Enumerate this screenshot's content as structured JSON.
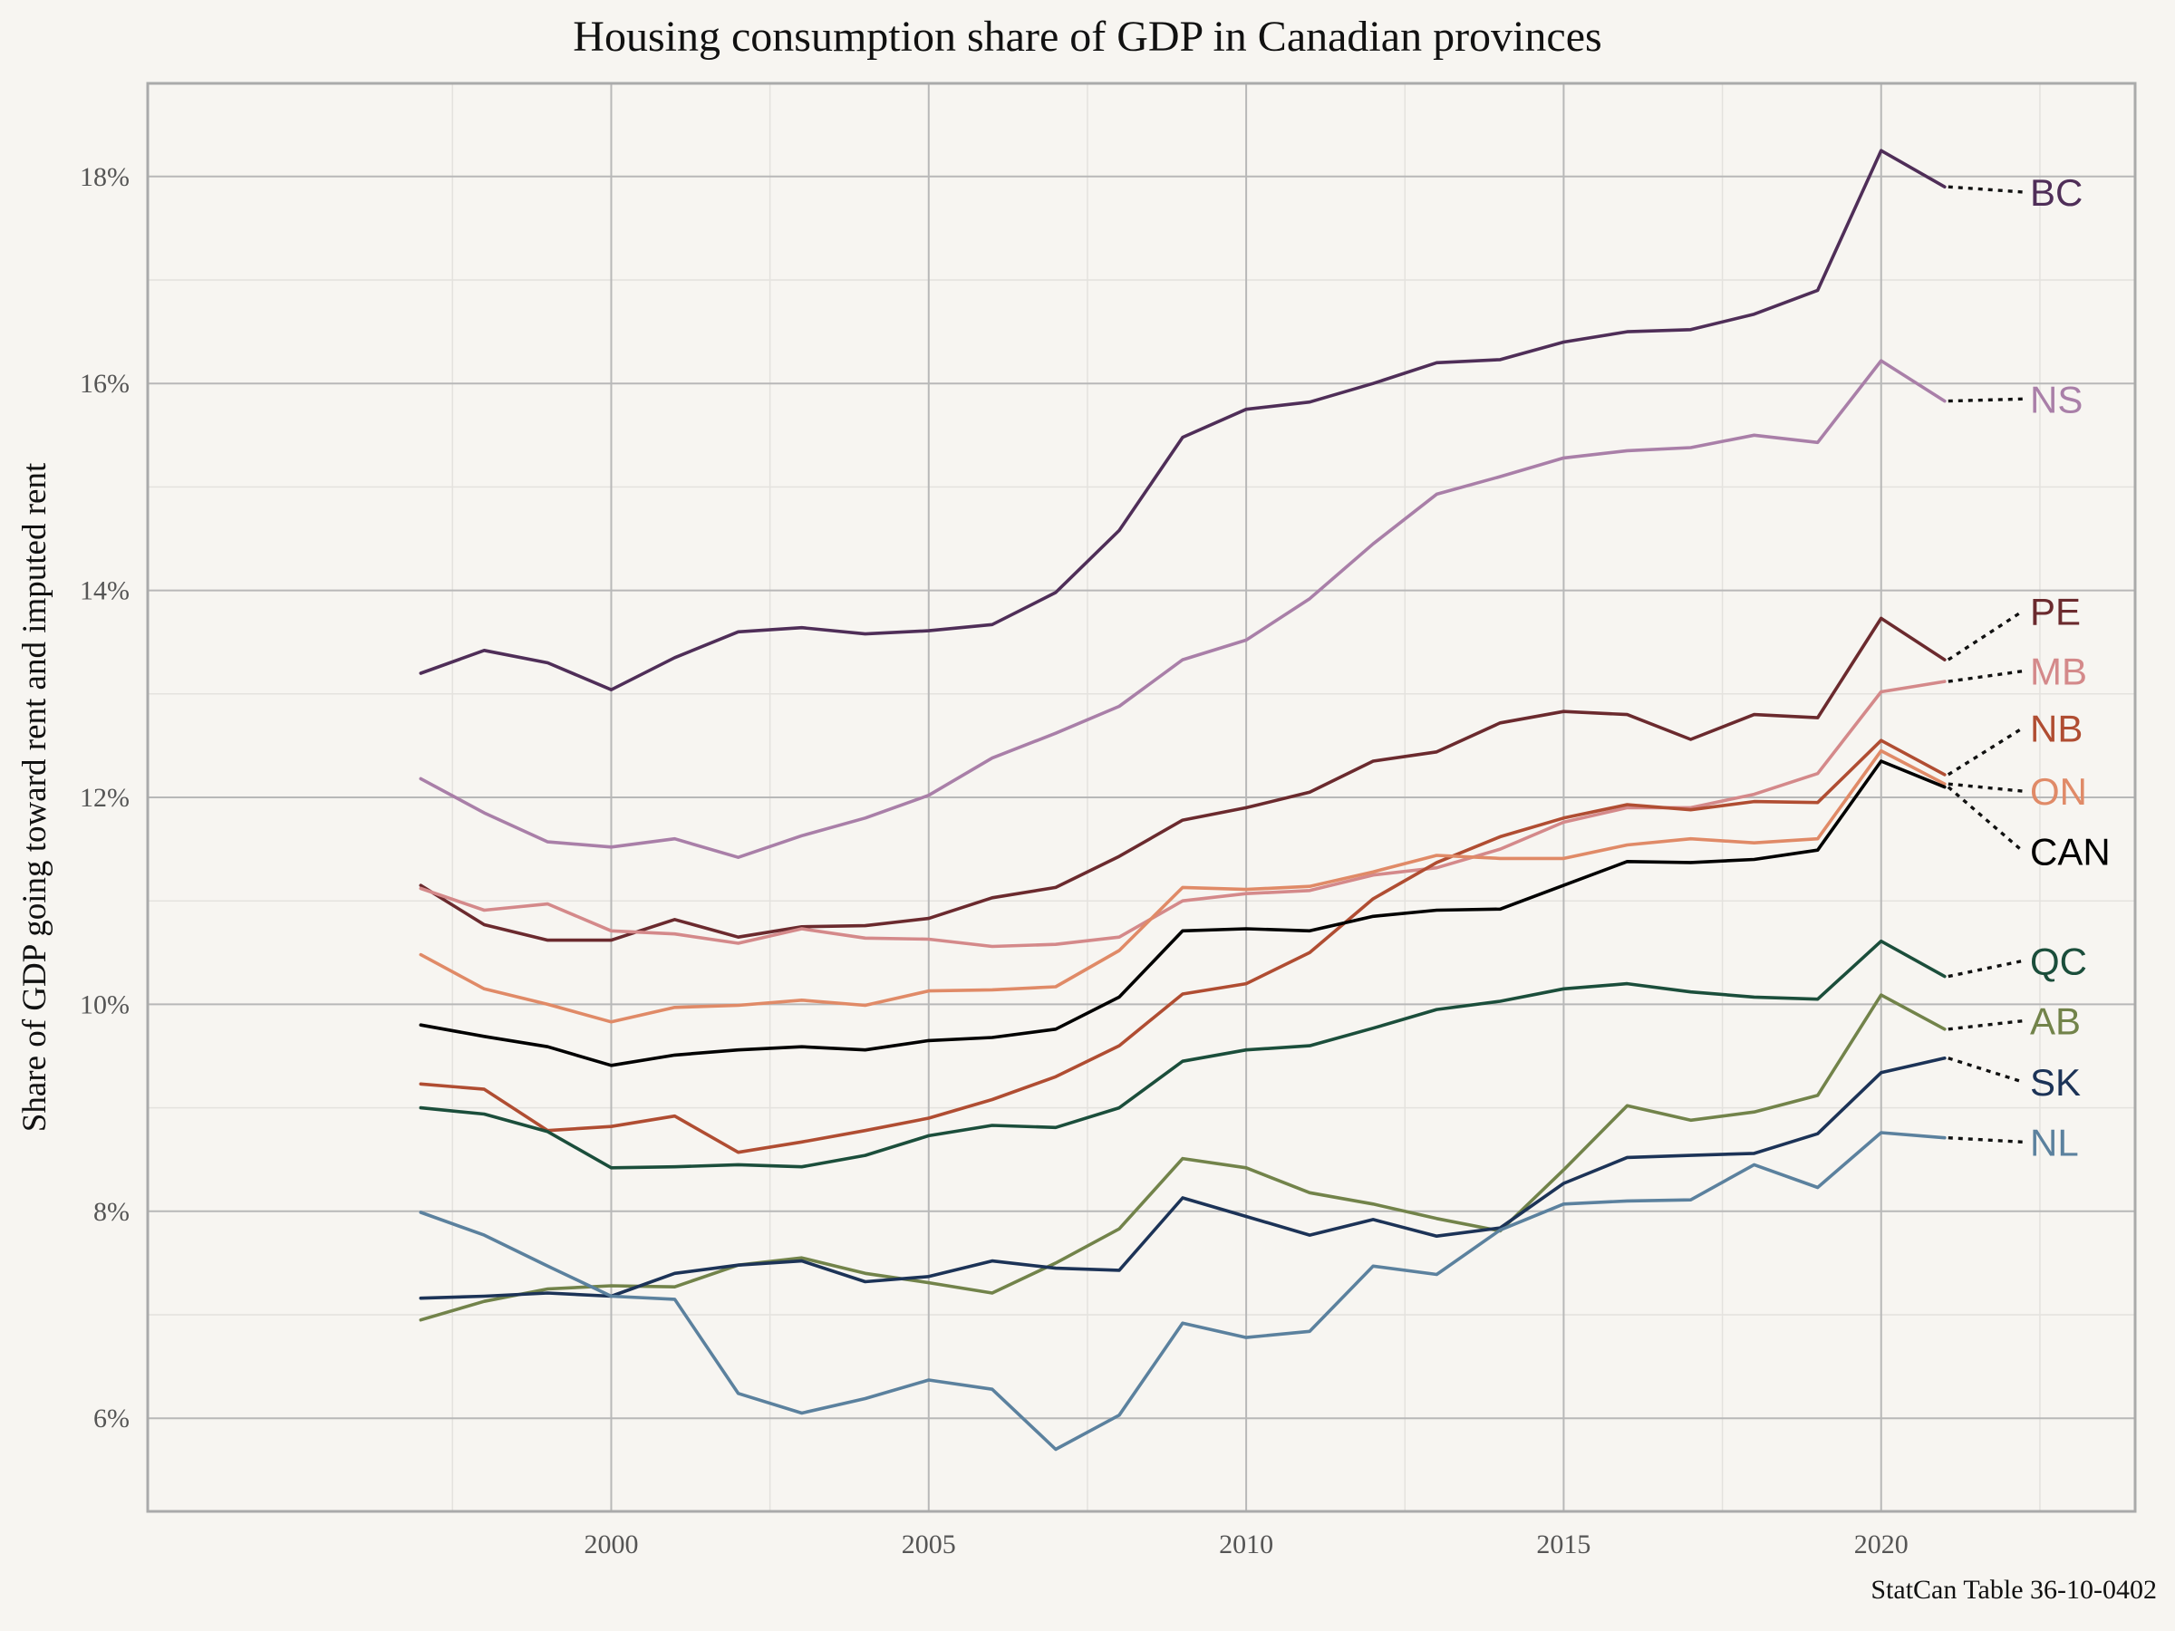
{
  "chart_data": {
    "type": "line",
    "title": "Housing consumption share of GDP in Canadian provinces",
    "ylabel": "Share of GDP going toward rent and imputed rent",
    "xlabel": "",
    "caption": "StatCan Table 36-10-0402",
    "x": [
      1997,
      1998,
      1999,
      2000,
      2001,
      2002,
      2003,
      2004,
      2005,
      2006,
      2007,
      2008,
      2009,
      2010,
      2011,
      2012,
      2013,
      2014,
      2015,
      2016,
      2017,
      2018,
      2019,
      2020,
      2021
    ],
    "xlim": [
      1992.7,
      2024.0
    ],
    "ylim": [
      5.1,
      18.9
    ],
    "x_ticks": [
      2000,
      2005,
      2010,
      2015,
      2020
    ],
    "x_tick_labels": [
      "2000",
      "2005",
      "2010",
      "2015",
      "2020"
    ],
    "y_ticks": [
      6,
      8,
      10,
      12,
      14,
      16,
      18
    ],
    "y_tick_labels": [
      "6%",
      "8%",
      "10%",
      "12%",
      "14%",
      "16%",
      "18%"
    ],
    "grid": true,
    "legend": "direct labels at right end of each line",
    "series": [
      {
        "name": "BC",
        "color": "#4f2e58",
        "label_value": 17.85,
        "values": [
          13.2,
          13.42,
          13.3,
          13.04,
          13.35,
          13.6,
          13.64,
          13.58,
          13.61,
          13.67,
          13.98,
          14.58,
          15.48,
          15.75,
          15.82,
          16.0,
          16.2,
          16.23,
          16.4,
          16.5,
          16.52,
          16.67,
          16.9,
          18.25,
          17.9
        ]
      },
      {
        "name": "NS",
        "color": "#a97fa8",
        "label_value": 15.85,
        "values": [
          12.18,
          11.85,
          11.57,
          11.52,
          11.6,
          11.42,
          11.63,
          11.8,
          12.02,
          12.38,
          12.62,
          12.88,
          13.33,
          13.52,
          13.92,
          14.45,
          14.93,
          15.1,
          15.28,
          15.35,
          15.38,
          15.5,
          15.43,
          16.22,
          15.83
        ]
      },
      {
        "name": "PE",
        "color": "#6b2a2e",
        "label_value": 13.8,
        "values": [
          11.15,
          10.77,
          10.62,
          10.62,
          10.82,
          10.65,
          10.75,
          10.76,
          10.83,
          11.03,
          11.13,
          11.43,
          11.78,
          11.9,
          12.05,
          12.35,
          12.44,
          12.72,
          12.83,
          12.8,
          12.56,
          12.8,
          12.77,
          13.73,
          13.33
        ]
      },
      {
        "name": "MB",
        "color": "#d4898a",
        "label_value": 13.22,
        "values": [
          11.12,
          10.91,
          10.97,
          10.71,
          10.68,
          10.59,
          10.73,
          10.64,
          10.63,
          10.56,
          10.58,
          10.65,
          11.0,
          11.07,
          11.1,
          11.25,
          11.32,
          11.5,
          11.76,
          11.9,
          11.9,
          12.03,
          12.23,
          13.02,
          13.12
        ]
      },
      {
        "name": "NB",
        "color": "#b04d32",
        "label_value": 12.67,
        "values": [
          9.23,
          9.18,
          8.78,
          8.82,
          8.92,
          8.57,
          8.67,
          8.78,
          8.9,
          9.08,
          9.3,
          9.6,
          10.1,
          10.2,
          10.5,
          11.02,
          11.37,
          11.62,
          11.8,
          11.93,
          11.88,
          11.96,
          11.95,
          12.55,
          12.22
        ]
      },
      {
        "name": "ON",
        "color": "#e08a67",
        "label_value": 12.06,
        "values": [
          10.48,
          10.15,
          10.0,
          9.83,
          9.97,
          9.99,
          10.04,
          9.99,
          10.13,
          10.14,
          10.17,
          10.52,
          11.13,
          11.11,
          11.14,
          11.28,
          11.44,
          11.41,
          11.41,
          11.54,
          11.6,
          11.56,
          11.6,
          12.45,
          12.13
        ]
      },
      {
        "name": "CAN",
        "color": "#000000",
        "label_value": 11.48,
        "values": [
          9.8,
          9.69,
          9.59,
          9.41,
          9.51,
          9.56,
          9.59,
          9.56,
          9.65,
          9.68,
          9.76,
          10.07,
          10.71,
          10.73,
          10.71,
          10.85,
          10.91,
          10.92,
          11.15,
          11.38,
          11.37,
          11.4,
          11.49,
          12.35,
          12.1
        ]
      },
      {
        "name": "QC",
        "color": "#1b4e3b",
        "label_value": 10.42,
        "values": [
          9.0,
          8.94,
          8.77,
          8.42,
          8.43,
          8.45,
          8.43,
          8.54,
          8.73,
          8.83,
          8.81,
          9.0,
          9.45,
          9.56,
          9.6,
          9.77,
          9.95,
          10.03,
          10.15,
          10.2,
          10.12,
          10.07,
          10.05,
          10.61,
          10.27
        ]
      },
      {
        "name": "AB",
        "color": "#72834a",
        "label_value": 9.84,
        "values": [
          6.95,
          7.13,
          7.25,
          7.28,
          7.27,
          7.48,
          7.55,
          7.4,
          7.31,
          7.21,
          7.5,
          7.83,
          8.51,
          8.42,
          8.18,
          8.07,
          7.93,
          7.81,
          8.4,
          9.02,
          8.88,
          8.96,
          9.12,
          10.09,
          9.76
        ]
      },
      {
        "name": "SK",
        "color": "#1c3357",
        "label_value": 9.25,
        "values": [
          7.16,
          7.18,
          7.21,
          7.18,
          7.4,
          7.48,
          7.52,
          7.32,
          7.37,
          7.52,
          7.45,
          7.43,
          8.13,
          7.95,
          7.77,
          7.92,
          7.76,
          7.84,
          8.27,
          8.52,
          8.54,
          8.56,
          8.75,
          9.34,
          9.48
        ]
      },
      {
        "name": "NL",
        "color": "#5b819e",
        "label_value": 8.67,
        "values": [
          7.99,
          7.77,
          7.47,
          7.18,
          7.15,
          6.24,
          6.05,
          6.19,
          6.37,
          6.28,
          5.7,
          6.03,
          6.92,
          6.78,
          6.84,
          7.47,
          7.39,
          7.82,
          8.07,
          8.1,
          8.11,
          8.45,
          8.23,
          8.76,
          8.71
        ]
      }
    ]
  }
}
